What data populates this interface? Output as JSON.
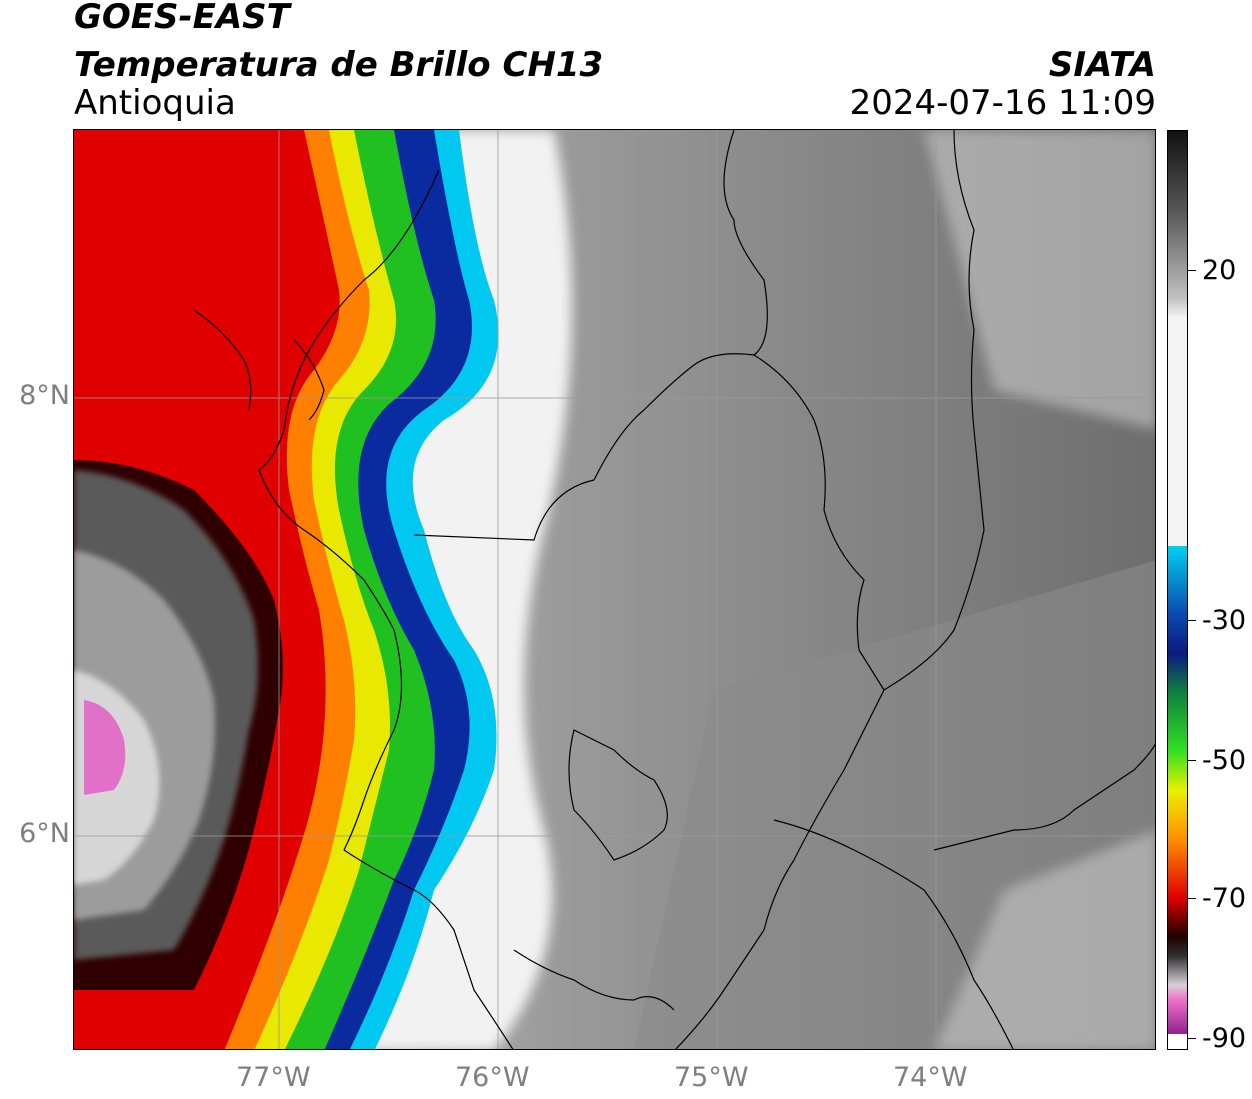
{
  "header": {
    "satellite": "GOES-EAST",
    "product": "Temperatura de Brillo CH13",
    "region": "Antioquia",
    "organization": "SIATA",
    "timestamp": "2024-07-16 11:09"
  },
  "axes": {
    "lon_labels": [
      "77°W",
      "76°W",
      "75°W",
      "74°W"
    ],
    "lat_labels": [
      "8°N",
      "6°N"
    ]
  },
  "colorbar": {
    "labels": [
      "20",
      "-30",
      "-50",
      "-70",
      "-90"
    ],
    "colors": {
      "cyan": "#00c8f0",
      "blue": "#0a2aa0",
      "green": "#20c020",
      "yellow": "#f0f000",
      "orange": "#ff8000",
      "red": "#e00000",
      "black": "#000000",
      "magenta": "#d030b0"
    }
  }
}
